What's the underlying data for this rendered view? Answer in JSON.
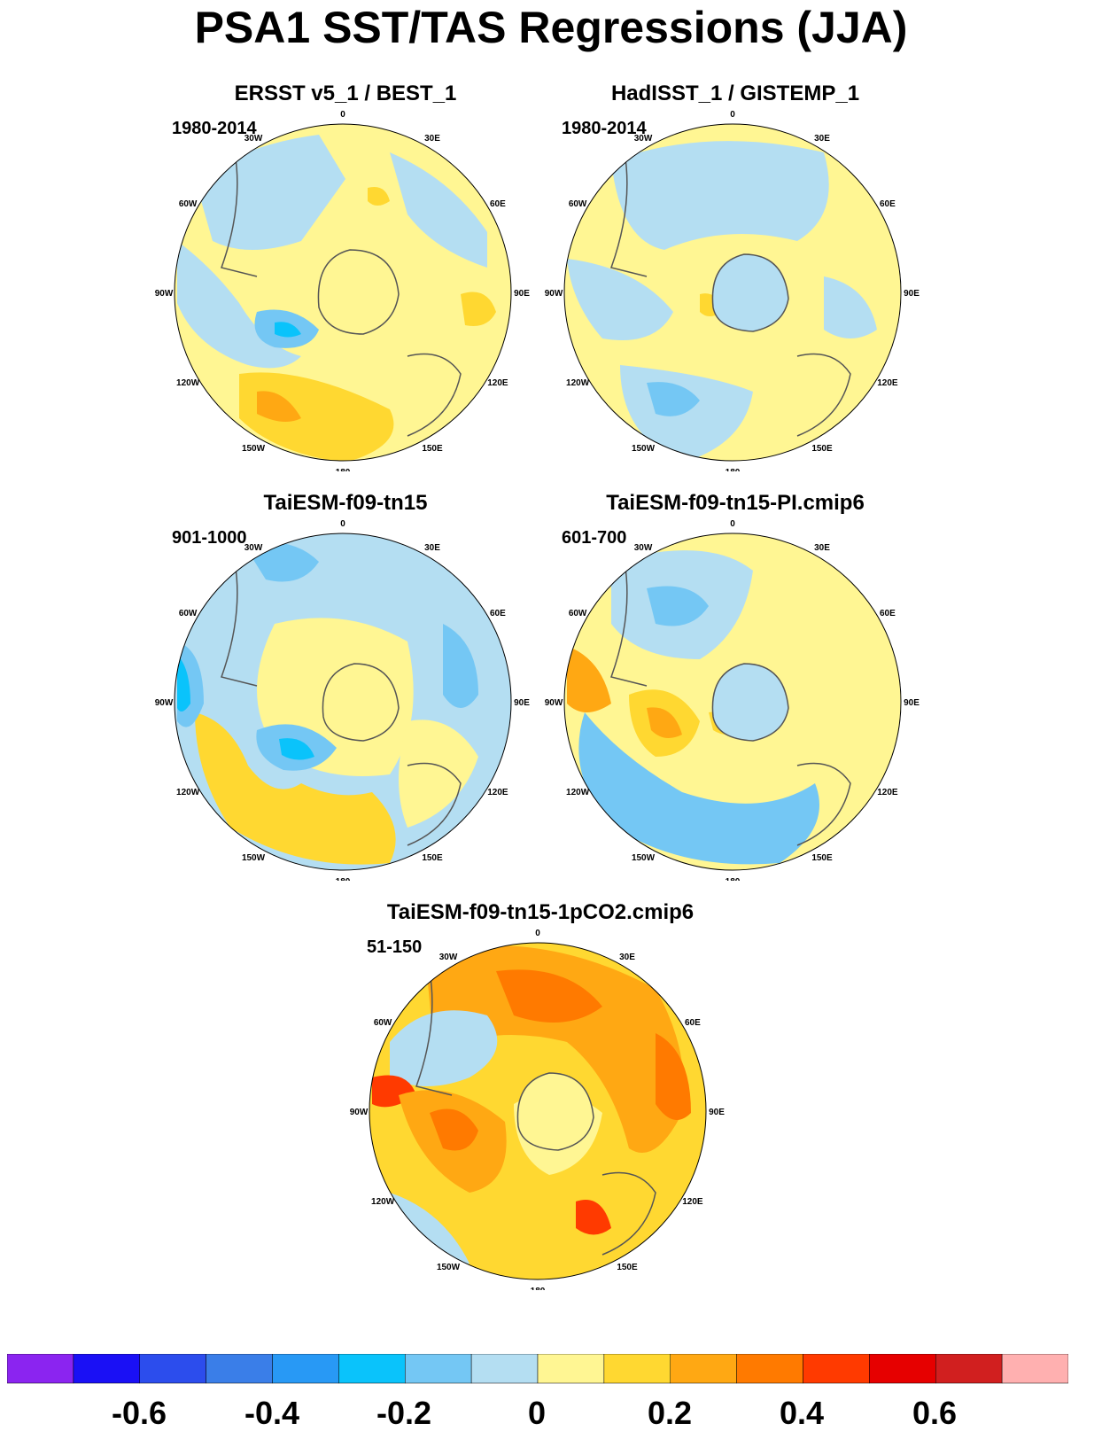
{
  "title": "PSA1 SST/TAS Regressions (JJA)",
  "longitude_labels": [
    "0",
    "30E",
    "60E",
    "90E",
    "120E",
    "150E",
    "180",
    "150W",
    "120W",
    "90W",
    "60W",
    "30W"
  ],
  "panels": [
    {
      "title": "ERSST v5_1 / BEST_1",
      "period": "1980-2014"
    },
    {
      "title": "HadISST_1 / GISTEMP_1",
      "period": "1980-2014"
    },
    {
      "title": "TaiESM-f09-tn15",
      "period": "901-1000"
    },
    {
      "title": "TaiESM-f09-tn15-PI.cmip6",
      "period": "601-700"
    },
    {
      "title": "TaiESM-f09-tn15-1pCO2.cmip6",
      "period": "51-150"
    }
  ],
  "colorbar": {
    "colors": [
      "#8b24f0",
      "#1a10f5",
      "#2c4ded",
      "#3a7ee8",
      "#2899f5",
      "#0ac3fb",
      "#74c7f4",
      "#b4def2",
      "#fff693",
      "#ffd831",
      "#ffa813",
      "#ff7a00",
      "#ff3a00",
      "#e60000",
      "#d11f1f",
      "#ffb0b0"
    ],
    "labels": [
      "-0.6",
      "-0.4",
      "-0.2",
      "0",
      "0.2",
      "0.4",
      "0.6"
    ]
  },
  "palette": {
    "ocean_base": "#fff693",
    "land_outline": "#555555",
    "antarctica": "#fff693"
  }
}
